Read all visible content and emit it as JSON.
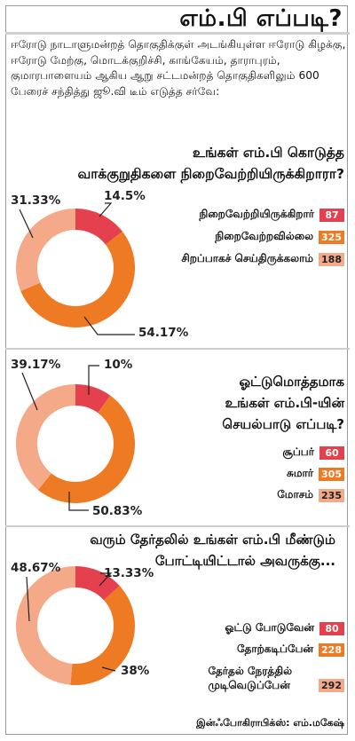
{
  "title": "எம்.பி எப்படி?",
  "intro": "ஈரோடு நாடாளுமன்றத் தொகுதிக்குள் அடங்கியுள்ள ஈரோடு கிழக்கு, ஈரோடு மேற்கு, மொடக்குறிச்சி, காங்கேயம், தாராபுரம், குமாரபாளையம் ஆகிய ஆறு சட்டமன்றத் தொகுதிகளிலும் 600 பேரைச் சந்தித்து ஜூ.வி டீம் எடுத்த சர்வே:",
  "credit": "இன்ஃபோகிராபிக்ஸ்: எம்.மகேஷ்",
  "colors": {
    "dark_red": "#e5404e",
    "orange": "#ee7a23",
    "peach": "#f4aa88"
  },
  "chart_data": [
    {
      "type": "pie",
      "title_line1": "உங்கள் எம்.பி கொடுத்த",
      "title_line2": "வாக்குறுதிகளை நிறைவேற்றியிருக்கிறாரா?",
      "categories": [
        "நிறைவேற்றியிருக்கிறார்",
        "நிறைவேற்றவில்லை",
        "சிறப்பாகச் செய்திருக்கலாம்"
      ],
      "values": [
        87,
        325,
        188
      ],
      "percent_labels": [
        "14.5%",
        "54.17%",
        "31.33%"
      ],
      "value_labels": [
        "87",
        "325",
        "188"
      ]
    },
    {
      "type": "pie",
      "title_line1": "ஓட்டுமொத்தமாக",
      "title_line2": "உங்கள் எம்.பி-யின்",
      "title_line3": "செயல்பாடு எப்படி?",
      "categories": [
        "சூப்பர்",
        "சுமார்",
        "மோசம்"
      ],
      "values": [
        60,
        305,
        235
      ],
      "percent_labels": [
        "10%",
        "50.83%",
        "39.17%"
      ],
      "value_labels": [
        "60",
        "305",
        "235"
      ]
    },
    {
      "type": "pie",
      "title_line1": "வரும் தேர்தலில் உங்கள் எம்.பி மீண்டும்",
      "title_line2": "போட்டியிட்டால் அவருக்கு...",
      "categories": [
        "ஓட்டு போடுவேன்",
        "தோற்கடிப்பேன்",
        "தேர்தல் நேரத்தில் முடிவெடுப்பேன்"
      ],
      "category_lines": [
        [
          "ஓட்டு போடுவேன்"
        ],
        [
          "தோற்கடிப்பேன்"
        ],
        [
          "தேர்தல் நேரத்தில்",
          "முடிவெடுப்பேன்"
        ]
      ],
      "values": [
        80,
        228,
        292
      ],
      "percent_labels": [
        "13.33%",
        "38%",
        "48.67%"
      ],
      "value_labels": [
        "80",
        "228",
        "292"
      ]
    }
  ]
}
